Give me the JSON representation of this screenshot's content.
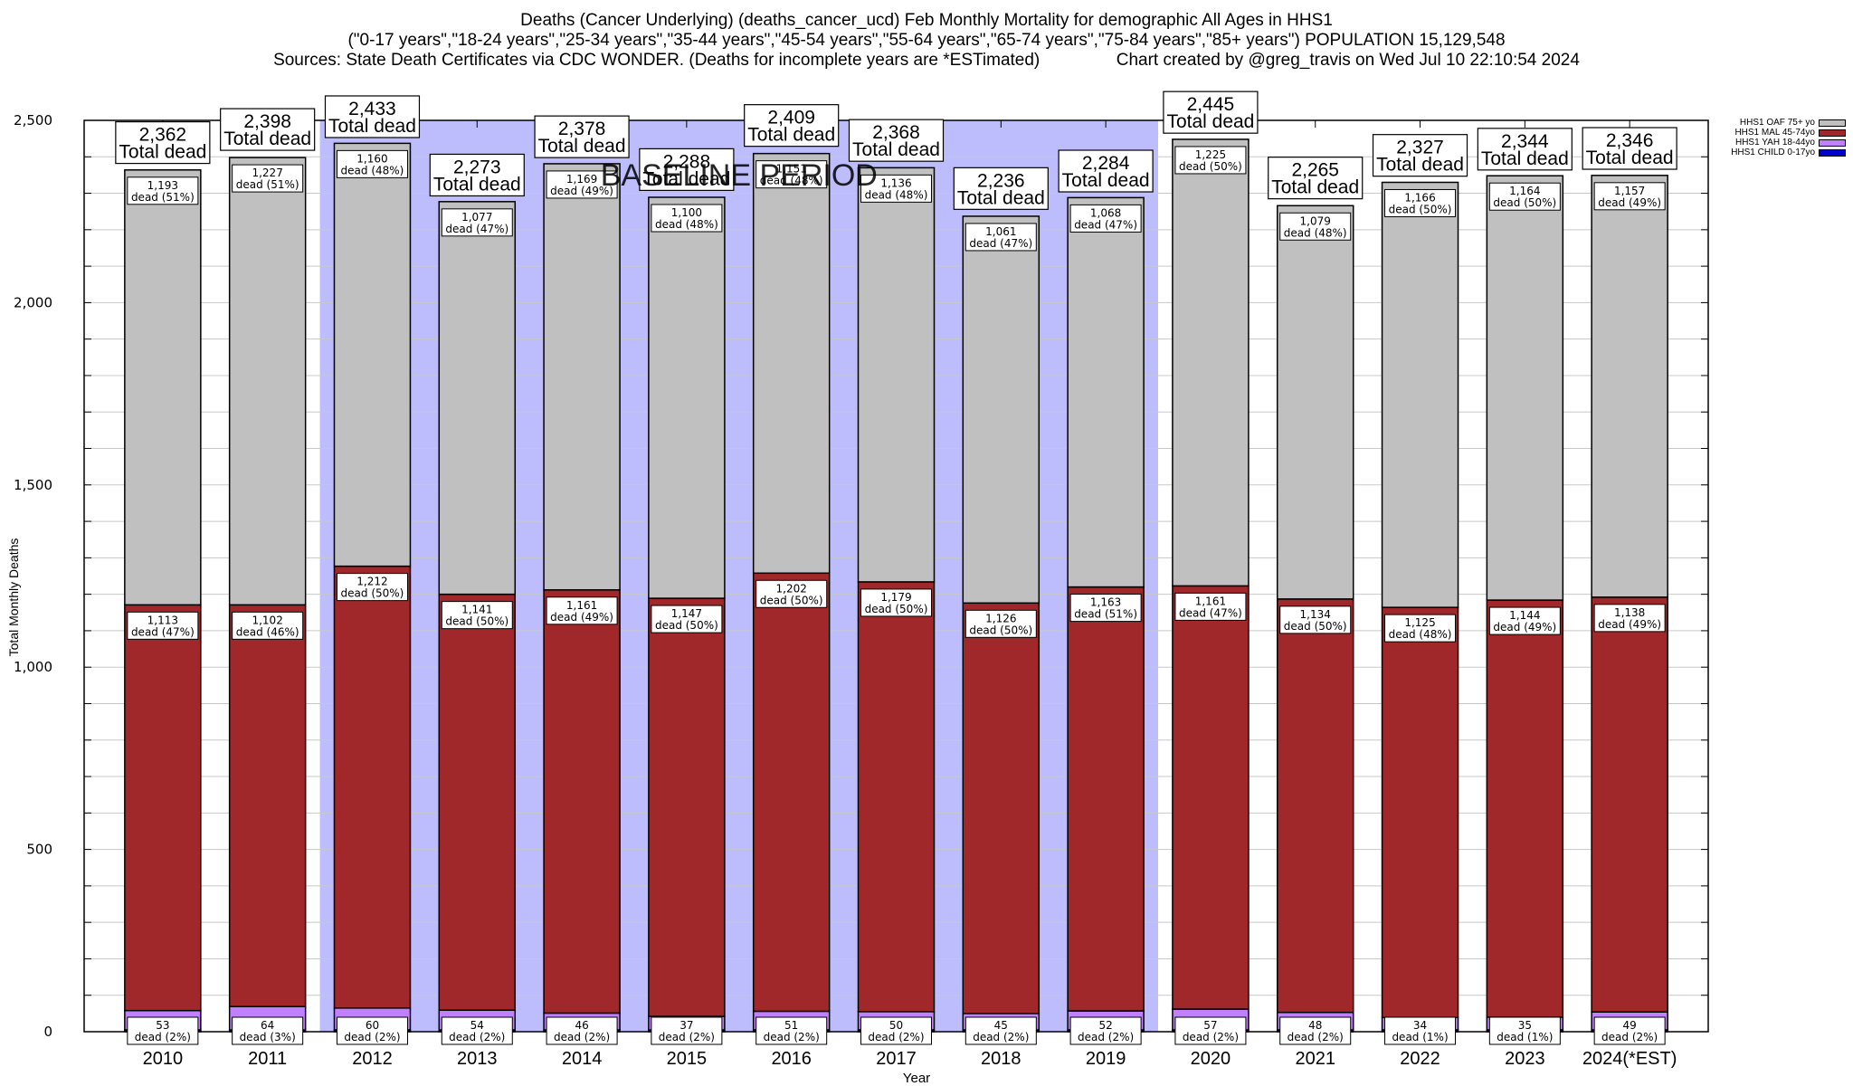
{
  "header": {
    "title_line1": "Deaths (Cancer Underlying) (deaths_cancer_ucd) Feb Monthly Mortality for demographic All Ages in HHS1",
    "title_line2": "(\"0-17 years\",\"18-24 years\",\"25-34 years\",\"35-44 years\",\"45-54 years\",\"55-64 years\",\"65-74 years\",\"75-84 years\",\"85+ years\") POPULATION 15,129,548",
    "title_line3": "Sources: State Death Certificates via CDC WONDER. (Deaths for incomplete years are *ESTimated)                Chart created by @greg_travis on Wed Jul 10 22:10:54 2024"
  },
  "chart_data": {
    "type": "bar",
    "stacked": true,
    "title": "Deaths (Cancer Underlying) (deaths_cancer_ucd) Feb Monthly Mortality for demographic All Ages in HHS1",
    "xlabel": "Year",
    "ylabel": "Total Monthly Deaths",
    "ylim": [
      0,
      2500
    ],
    "yticks": [
      0,
      500,
      1000,
      1500,
      2000,
      2500
    ],
    "ytick_labels": [
      "0",
      "500",
      "1,000",
      "1,500",
      "2,000",
      "2,500"
    ],
    "grid": true,
    "legend_position": "top-right",
    "categories": [
      "2010",
      "2011",
      "2012",
      "2013",
      "2014",
      "2015",
      "2016",
      "2017",
      "2018",
      "2019",
      "2020",
      "2021",
      "2022",
      "2023",
      "2024(*EST)"
    ],
    "series": [
      {
        "name": "HHS1 CHILD 0-17yo",
        "color": "#0000cc",
        "values": [
          5,
          5,
          5,
          5,
          5,
          5,
          5,
          5,
          5,
          5,
          5,
          5,
          5,
          5,
          5
        ]
      },
      {
        "name": "HHS1 YAH 18-44yo",
        "color": "#c080ff",
        "values": [
          53,
          64,
          60,
          54,
          46,
          37,
          51,
          50,
          45,
          52,
          57,
          48,
          34,
          35,
          49
        ],
        "pct_labels": [
          "2%",
          "3%",
          "2%",
          "2%",
          "2%",
          "2%",
          "2%",
          "2%",
          "2%",
          "2%",
          "2%",
          "2%",
          "1%",
          "1%",
          "2%"
        ]
      },
      {
        "name": "HHS1 MAL 45-74yo",
        "color": "#a0282a",
        "values": [
          1113,
          1102,
          1212,
          1141,
          1161,
          1147,
          1202,
          1179,
          1126,
          1163,
          1161,
          1134,
          1125,
          1144,
          1138
        ],
        "pct_labels": [
          "47%",
          "46%",
          "50%",
          "50%",
          "49%",
          "50%",
          "50%",
          "50%",
          "50%",
          "51%",
          "47%",
          "50%",
          "48%",
          "49%",
          "49%"
        ]
      },
      {
        "name": "HHS1 OAF 75+ yo",
        "color": "#c0c0c0",
        "values": [
          1193,
          1227,
          1160,
          1077,
          1169,
          1100,
          1151,
          1136,
          1061,
          1068,
          1225,
          1079,
          1166,
          1164,
          1157
        ],
        "pct_labels": [
          "51%",
          "51%",
          "48%",
          "47%",
          "49%",
          "48%",
          "48%",
          "48%",
          "47%",
          "47%",
          "50%",
          "48%",
          "50%",
          "50%",
          "49%"
        ]
      }
    ],
    "totals": [
      2362,
      2398,
      2433,
      2273,
      2378,
      2288,
      2409,
      2368,
      2236,
      2284,
      2445,
      2265,
      2327,
      2344,
      2346
    ],
    "total_label_suffix": "Total dead",
    "segment_label_word": "dead",
    "baseline_period": {
      "label": "BASELINE PERIOD",
      "start": "2012",
      "end": "2019",
      "color": "#bdbdfd"
    }
  },
  "legend": {
    "items": [
      {
        "label": "HHS1 OAF 75+ yo",
        "color": "#c0c0c0"
      },
      {
        "label": "HHS1 MAL 45-74yo",
        "color": "#a0282a"
      },
      {
        "label": "HHS1 YAH 18-44yo",
        "color": "#c080ff"
      },
      {
        "label": "HHS1 CHILD 0-17yo",
        "color": "#0000cc"
      }
    ]
  }
}
